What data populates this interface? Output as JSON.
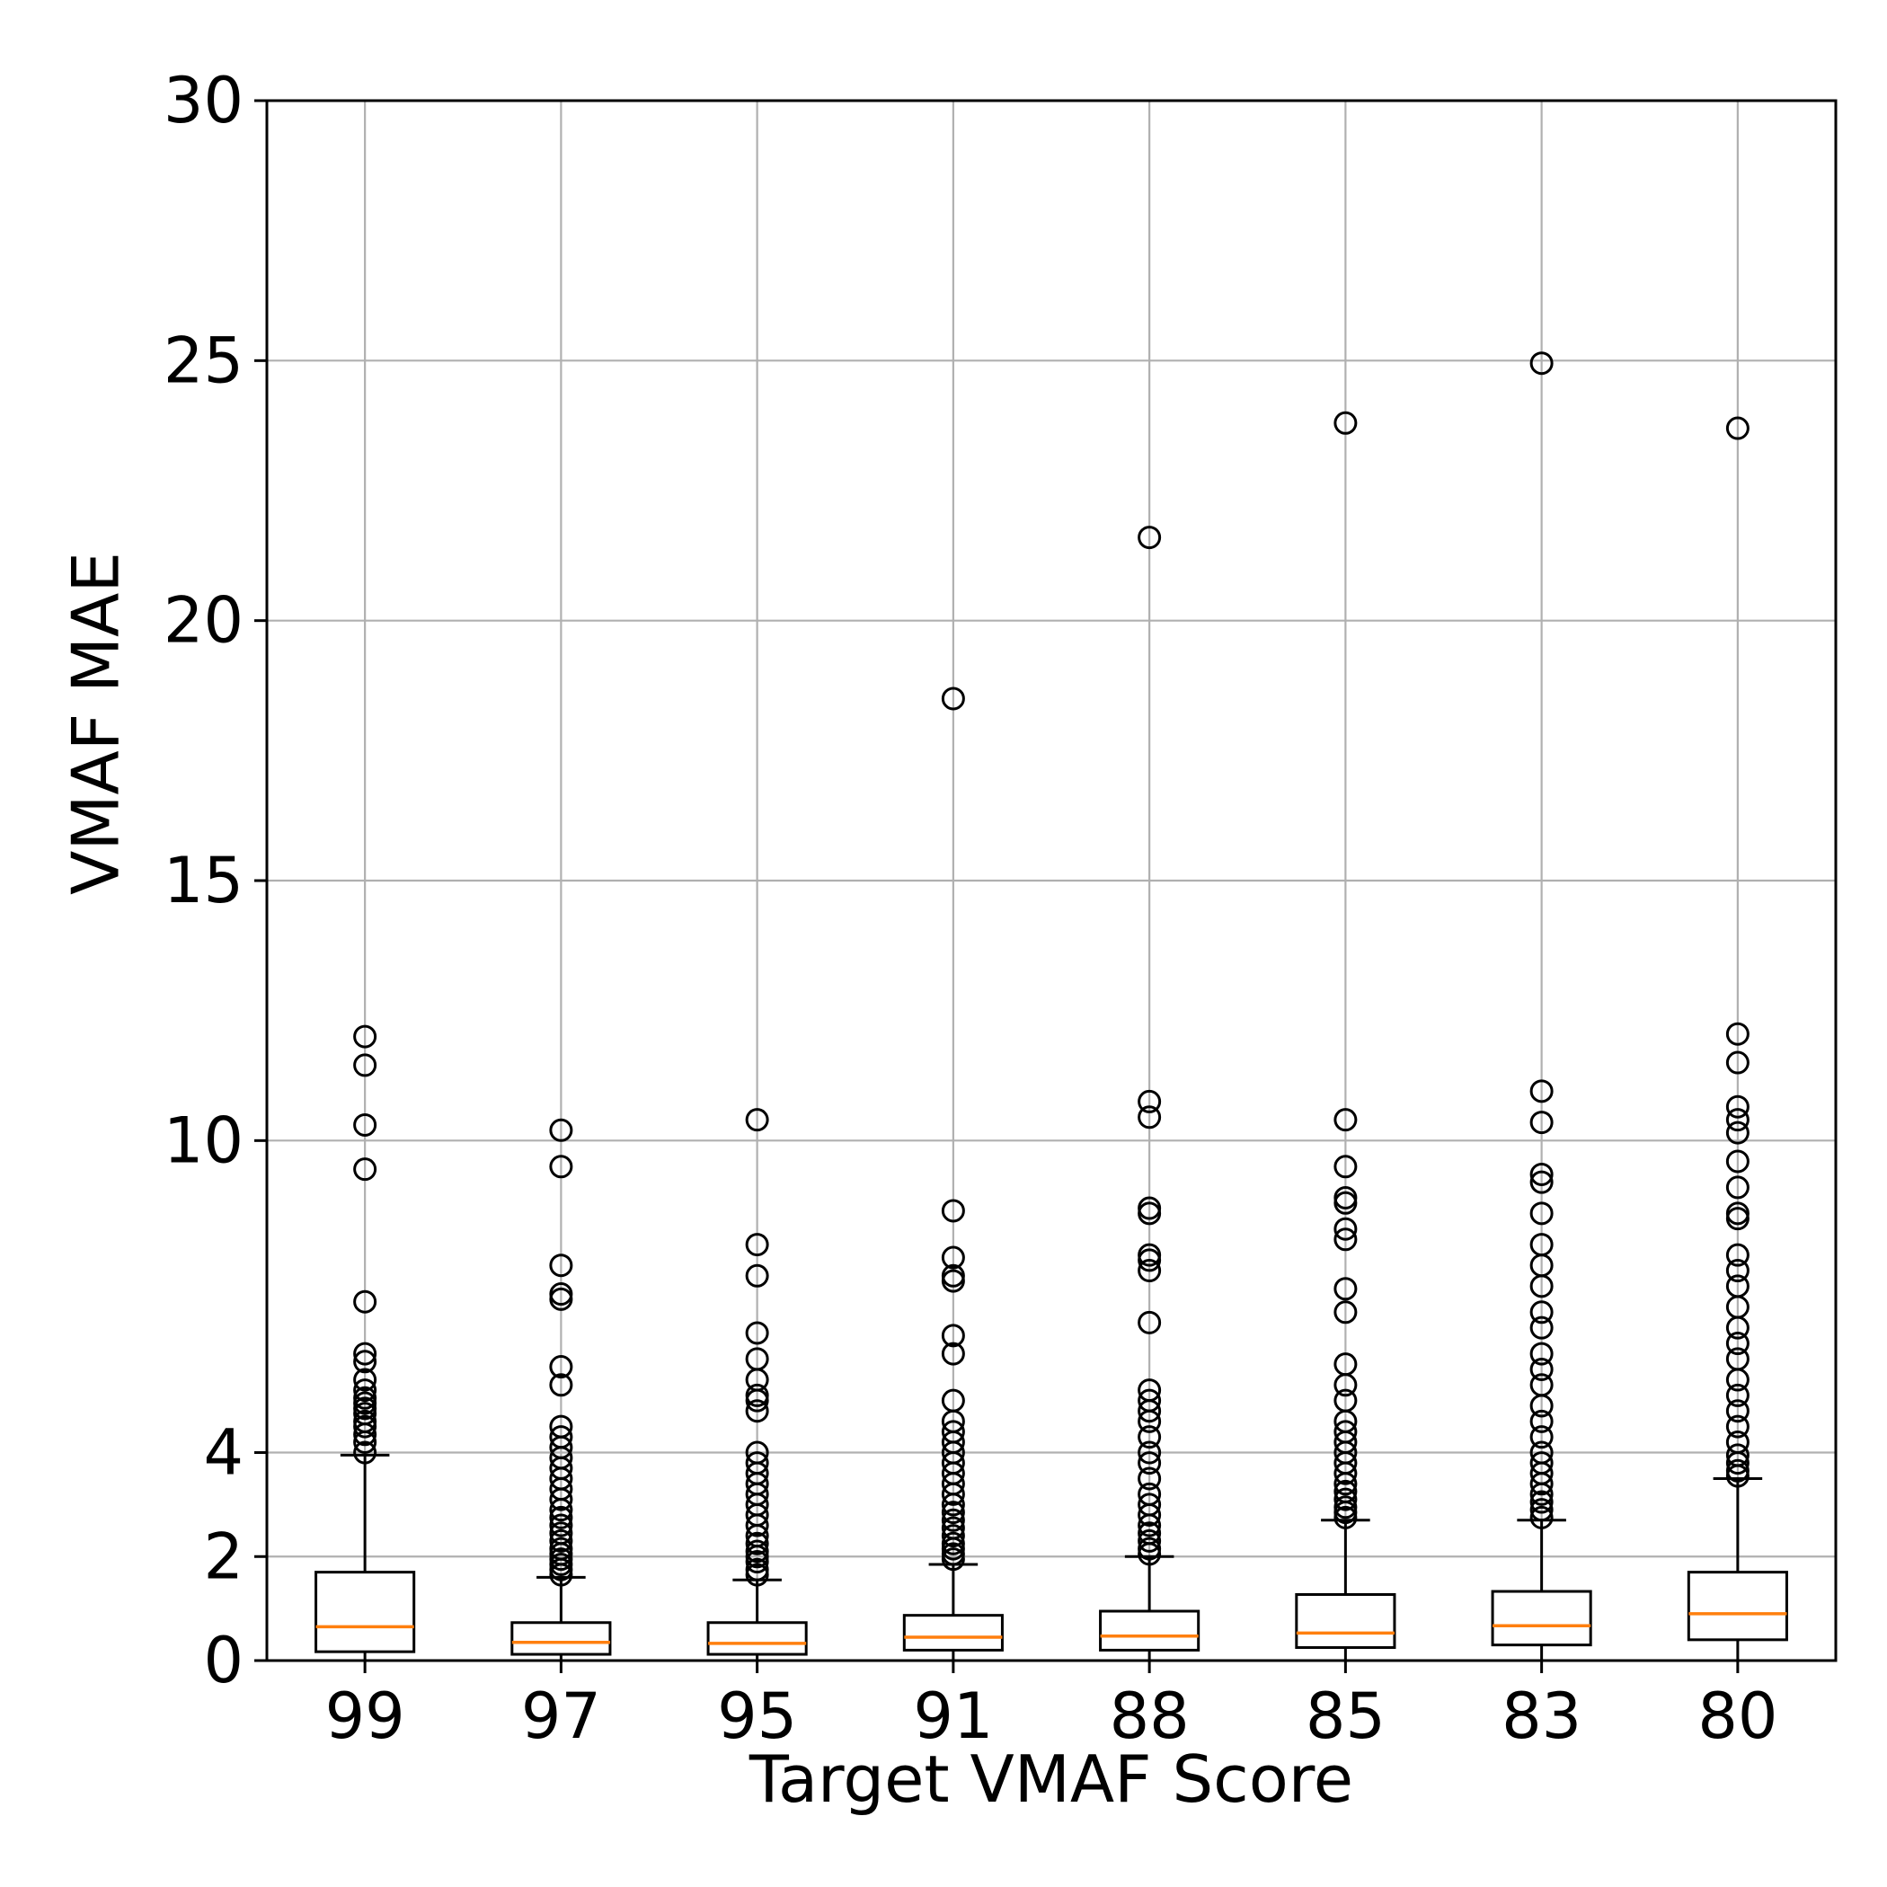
{
  "chart_data": {
    "type": "box",
    "title": "",
    "xlabel": "Target VMAF Score",
    "ylabel": "VMAF MAE",
    "categories": [
      "99",
      "97",
      "95",
      "91",
      "88",
      "85",
      "83",
      "80"
    ],
    "ylim": [
      0,
      30
    ],
    "yticks": [
      0,
      2,
      4,
      10,
      15,
      20,
      25,
      30
    ],
    "grid": true,
    "colors": {
      "box": "#000000",
      "median": "#ff7f0e",
      "grid": "#b0b0b0",
      "outlier": "#000000"
    },
    "boxes": [
      {
        "category": "99",
        "whisker_low": 0.0,
        "q1": 0.17,
        "median": 0.65,
        "q3": 1.7,
        "whisker_high": 3.95,
        "outliers": [
          4.0,
          4.2,
          4.35,
          4.5,
          4.6,
          4.75,
          4.85,
          4.95,
          5.05,
          5.2,
          5.4,
          5.75,
          5.9,
          6.9,
          9.45,
          10.3,
          11.45,
          12.0
        ]
      },
      {
        "category": "97",
        "whisker_low": 0.0,
        "q1": 0.12,
        "median": 0.35,
        "q3": 0.73,
        "whisker_high": 1.6,
        "outliers": [
          1.65,
          1.75,
          1.85,
          1.95,
          2.05,
          2.15,
          2.3,
          2.45,
          2.6,
          2.75,
          2.9,
          3.1,
          3.3,
          3.5,
          3.7,
          3.9,
          4.1,
          4.3,
          4.5,
          5.3,
          5.65,
          6.95,
          7.05,
          7.6,
          9.5,
          10.2
        ]
      },
      {
        "category": "95",
        "whisker_low": 0.0,
        "q1": 0.12,
        "median": 0.33,
        "q3": 0.73,
        "whisker_high": 1.55,
        "outliers": [
          1.65,
          1.75,
          1.9,
          2.0,
          2.1,
          2.25,
          2.4,
          2.6,
          2.8,
          3.0,
          3.2,
          3.4,
          3.6,
          3.8,
          4.0,
          4.8,
          5.0,
          5.1,
          5.4,
          5.8,
          6.3,
          7.4,
          8.0,
          10.4
        ]
      },
      {
        "category": "91",
        "whisker_low": 0.0,
        "q1": 0.2,
        "median": 0.45,
        "q3": 0.87,
        "whisker_high": 1.85,
        "outliers": [
          1.95,
          2.05,
          2.15,
          2.25,
          2.4,
          2.55,
          2.7,
          2.85,
          3.0,
          3.2,
          3.4,
          3.6,
          3.8,
          4.0,
          4.2,
          4.4,
          4.6,
          5.0,
          5.9,
          6.25,
          7.3,
          7.4,
          7.75,
          8.65,
          18.5
        ]
      },
      {
        "category": "88",
        "whisker_low": 0.0,
        "q1": 0.2,
        "median": 0.47,
        "q3": 0.95,
        "whisker_high": 2.0,
        "outliers": [
          2.05,
          2.15,
          2.3,
          2.45,
          2.6,
          2.8,
          3.0,
          3.2,
          3.5,
          3.8,
          4.0,
          4.3,
          4.6,
          4.8,
          5.0,
          5.2,
          6.5,
          7.5,
          7.7,
          7.8,
          8.6,
          8.7,
          10.45,
          10.75,
          21.6
        ]
      },
      {
        "category": "85",
        "whisker_low": 0.0,
        "q1": 0.25,
        "median": 0.53,
        "q3": 1.27,
        "whisker_high": 2.7,
        "outliers": [
          2.75,
          2.85,
          2.95,
          3.1,
          3.25,
          3.4,
          3.6,
          3.8,
          4.0,
          4.2,
          4.4,
          4.6,
          5.0,
          5.3,
          5.7,
          6.7,
          7.15,
          8.1,
          8.3,
          8.8,
          8.9,
          9.5,
          10.4,
          23.8
        ]
      },
      {
        "category": "83",
        "whisker_low": 0.0,
        "q1": 0.3,
        "median": 0.67,
        "q3": 1.33,
        "whisker_high": 2.7,
        "outliers": [
          2.75,
          2.9,
          3.05,
          3.2,
          3.4,
          3.6,
          3.8,
          4.0,
          4.3,
          4.6,
          4.9,
          5.3,
          5.6,
          5.9,
          6.4,
          6.7,
          7.2,
          7.6,
          8.0,
          8.6,
          9.2,
          9.35,
          10.35,
          10.95,
          24.95
        ]
      },
      {
        "category": "80",
        "whisker_low": 0.0,
        "q1": 0.4,
        "median": 0.9,
        "q3": 1.7,
        "whisker_high": 3.5,
        "outliers": [
          3.55,
          3.65,
          3.8,
          3.95,
          4.2,
          4.5,
          4.8,
          5.1,
          5.4,
          5.8,
          6.1,
          6.4,
          6.8,
          7.2,
          7.5,
          7.8,
          8.5,
          8.6,
          9.1,
          9.6,
          10.15,
          10.4,
          10.65,
          11.5,
          12.05,
          23.7
        ]
      }
    ]
  }
}
